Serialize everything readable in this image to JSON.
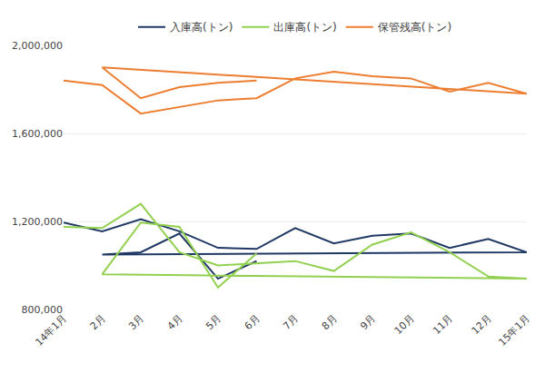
{
  "chart_data": {
    "type": "line",
    "categories": [
      "14年1月",
      "2月",
      "3月",
      "4月",
      "5月",
      "6月",
      "7月",
      "8月",
      "9月",
      "10月",
      "11月",
      "12月",
      "15年1月",
      "2月",
      "3月",
      "4月",
      "5月",
      "6月"
    ],
    "series": [
      {
        "name": "入庫高(トン)",
        "color": "#1F3864",
        "values": [
          1195000,
          1155000,
          1210000,
          1155000,
          1080000,
          1075000,
          1170000,
          1100000,
          1135000,
          1145000,
          1080000,
          1120000,
          1060000,
          1050000,
          1060000,
          1145000,
          940000,
          1020000
        ]
      },
      {
        "name": "出庫高(トン)",
        "color": "#92D050",
        "values": [
          1175000,
          1170000,
          1280000,
          1060000,
          1000000,
          1010000,
          1020000,
          975000,
          1095000,
          1150000,
          1060000,
          950000,
          940000,
          960000,
          1195000,
          1175000,
          900000,
          1055000
        ]
      },
      {
        "name": "保管残高(トン)",
        "color": "#ED7D31",
        "values": [
          1840000,
          1820000,
          1690000,
          1720000,
          1750000,
          1760000,
          1850000,
          1880000,
          1860000,
          1850000,
          1790000,
          1830000,
          1780000,
          1900000,
          1760000,
          1810000,
          1830000,
          1840000
        ]
      }
    ],
    "ylim": [
      800000,
      2000000
    ],
    "yticks": [
      {
        "value": 800000,
        "label": "800,000"
      },
      {
        "value": 1200000,
        "label": "1,200,000"
      },
      {
        "value": 1600000,
        "label": "1,600,000"
      },
      {
        "value": 2000000,
        "label": "2,000,000"
      }
    ],
    "grid": true,
    "legend": "top"
  }
}
